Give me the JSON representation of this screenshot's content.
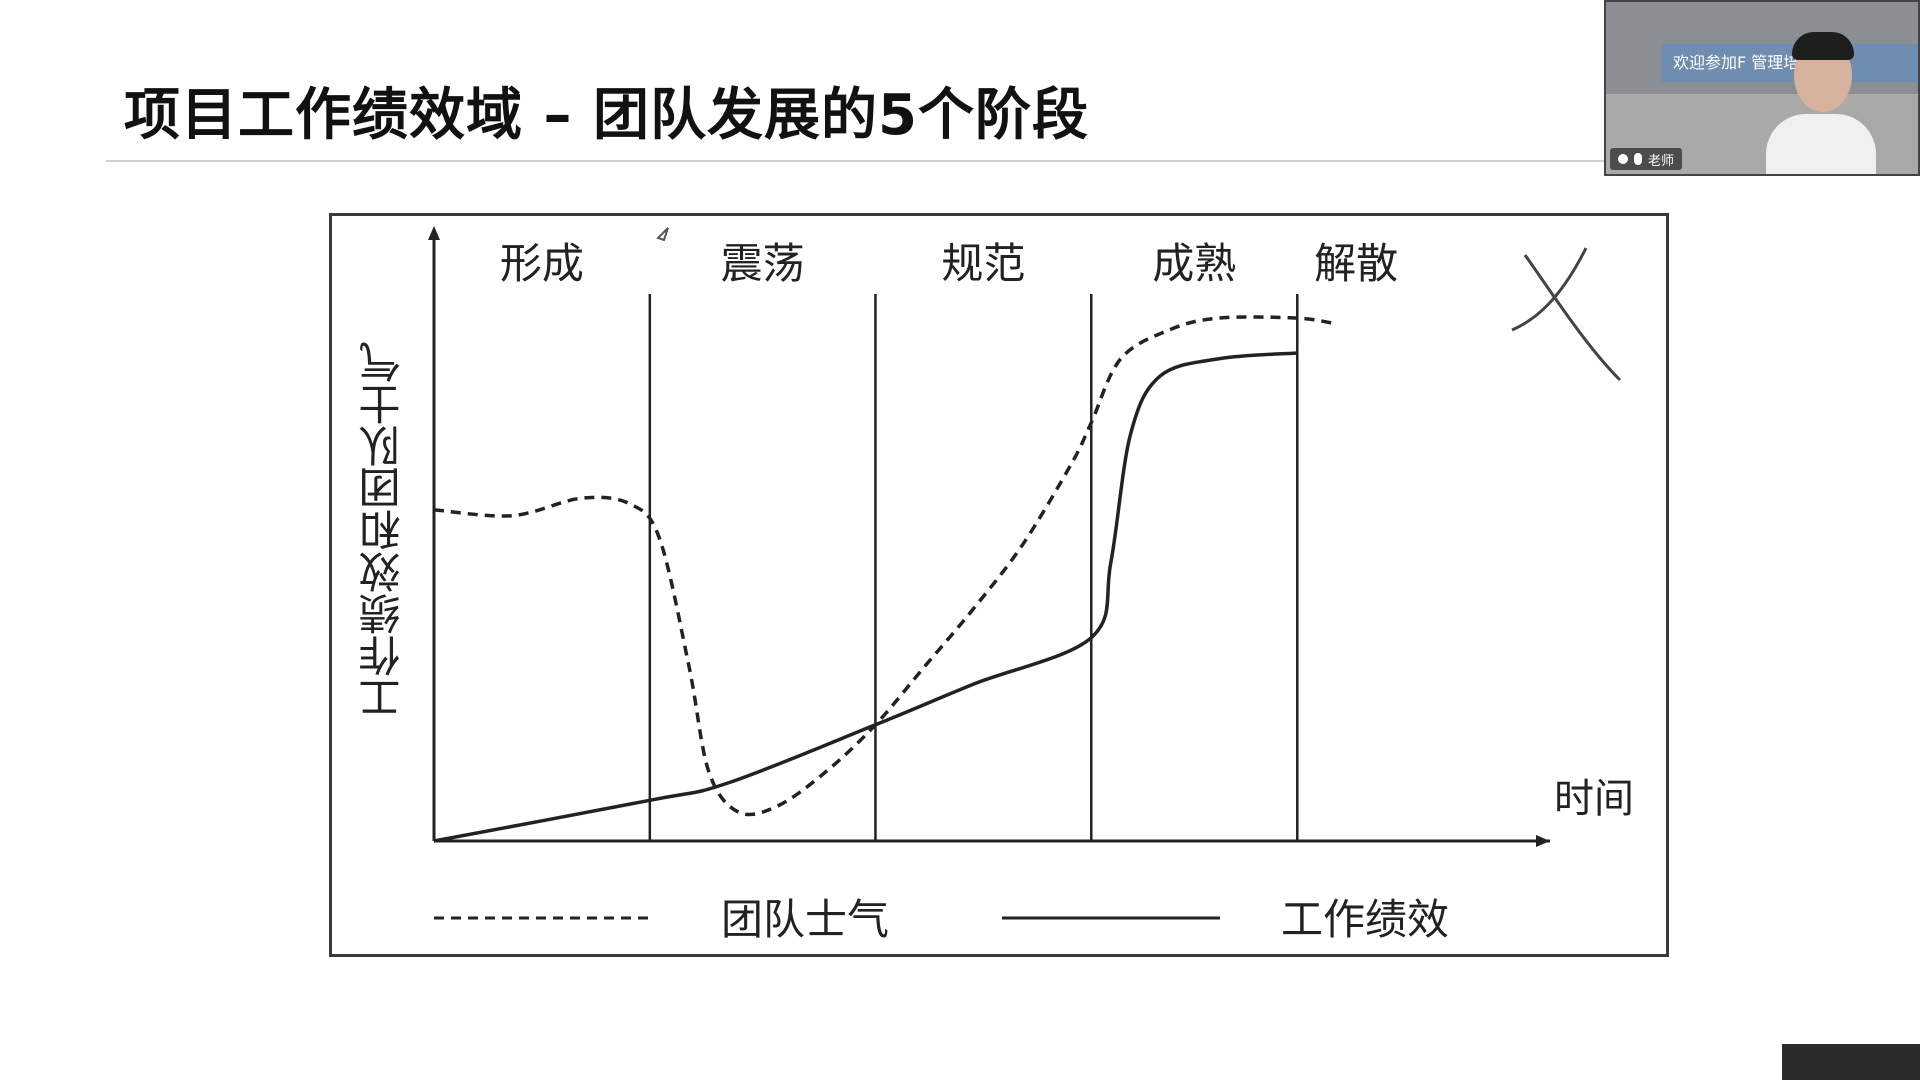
{
  "slide": {
    "title": "项目工作绩效域 – 团队发展的5个阶段"
  },
  "webcam": {
    "banner_text": "欢迎参加F  管理培训",
    "name_label": "老师"
  },
  "chart_data": {
    "type": "line",
    "title": "",
    "xlabel": "时间",
    "ylabel": "工作绩效和团队士气",
    "stages": [
      "形成",
      "震荡",
      "规范",
      "成熟",
      "解散"
    ],
    "xlim": [
      0,
      100
    ],
    "ylim": [
      0,
      100
    ],
    "stage_boundaries": [
      22,
      45,
      67,
      88
    ],
    "series": [
      {
        "name": "团队士气",
        "style": "dashed",
        "x": [
          0,
          8,
          15,
          20,
          23,
          26,
          28,
          31,
          35,
          40,
          45,
          50,
          55,
          60,
          65,
          67,
          70,
          75,
          80,
          88,
          92
        ],
        "y": [
          57,
          56,
          59,
          58,
          52,
          30,
          12,
          5,
          6,
          12,
          20,
          30,
          40,
          51,
          65,
          72,
          83,
          88,
          90,
          90,
          89
        ]
      },
      {
        "name": "工作绩效",
        "style": "solid",
        "x": [
          0,
          22,
          30,
          45,
          55,
          67,
          69,
          71,
          74,
          80,
          88
        ],
        "y": [
          0,
          7,
          10,
          20,
          27,
          35,
          48,
          70,
          80,
          83,
          84
        ]
      }
    ],
    "legend": [
      "团队士气",
      "工作绩效"
    ],
    "legend_position": "bottom",
    "line_color": "#222222"
  }
}
